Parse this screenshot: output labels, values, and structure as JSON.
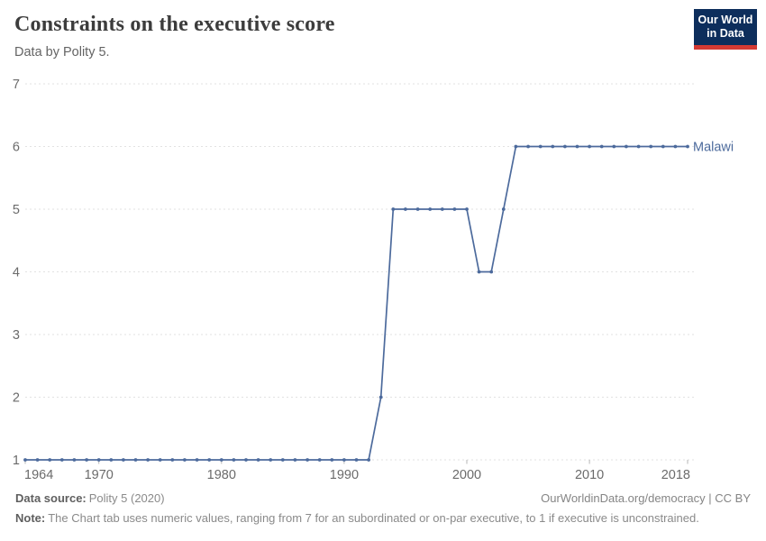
{
  "header": {
    "title": "Constraints on the executive score",
    "subtitle": "Data by Polity 5.",
    "logo": {
      "line1": "Our World",
      "line2": "in Data",
      "bg_color": "#0d2e5c",
      "accent_color": "#d43a33"
    }
  },
  "chart_data": {
    "type": "line",
    "title": "Constraints on the executive score",
    "subtitle": "Data by Polity 5.",
    "entity": "Malawi",
    "xlabel": "",
    "ylabel": "",
    "xlim": [
      1964,
      2018
    ],
    "ylim": [
      1,
      7
    ],
    "grid": "horizontal-dashed",
    "legend_position": "end-of-line-label",
    "xticks": [
      1964,
      1970,
      1980,
      1990,
      2000,
      2010,
      2018
    ],
    "yticks": [
      1,
      2,
      3,
      4,
      5,
      6,
      7
    ],
    "x": [
      1964,
      1965,
      1966,
      1967,
      1968,
      1969,
      1970,
      1971,
      1972,
      1973,
      1974,
      1975,
      1976,
      1977,
      1978,
      1979,
      1980,
      1981,
      1982,
      1983,
      1984,
      1985,
      1986,
      1987,
      1988,
      1989,
      1990,
      1991,
      1992,
      1993,
      1994,
      1995,
      1996,
      1997,
      1998,
      1999,
      2000,
      2001,
      2002,
      2003,
      2004,
      2005,
      2006,
      2007,
      2008,
      2009,
      2010,
      2011,
      2012,
      2013,
      2014,
      2015,
      2016,
      2017,
      2018
    ],
    "series": [
      {
        "name": "Malawi",
        "color": "#4c6a9c",
        "values": [
          1,
          1,
          1,
          1,
          1,
          1,
          1,
          1,
          1,
          1,
          1,
          1,
          1,
          1,
          1,
          1,
          1,
          1,
          1,
          1,
          1,
          1,
          1,
          1,
          1,
          1,
          1,
          1,
          1,
          2,
          5,
          5,
          5,
          5,
          5,
          5,
          5,
          4,
          4,
          5,
          6,
          6,
          6,
          6,
          6,
          6,
          6,
          6,
          6,
          6,
          6,
          6,
          6,
          6,
          6
        ]
      }
    ],
    "colors": {
      "line": "#4c6a9c",
      "gridline": "#e2e2e2",
      "axis_label": "#6b6b6b",
      "tick_mark": "#b6b6b6"
    }
  },
  "footer": {
    "source_label": "Data source:",
    "source_value": "Polity 5 (2020)",
    "link": "OurWorldinData.org/democracy | CC BY",
    "note_label": "Note:",
    "note_text": "The Chart tab uses numeric values, ranging from 7 for an subordinated or on-par executive, to 1 if executive is unconstrained."
  }
}
